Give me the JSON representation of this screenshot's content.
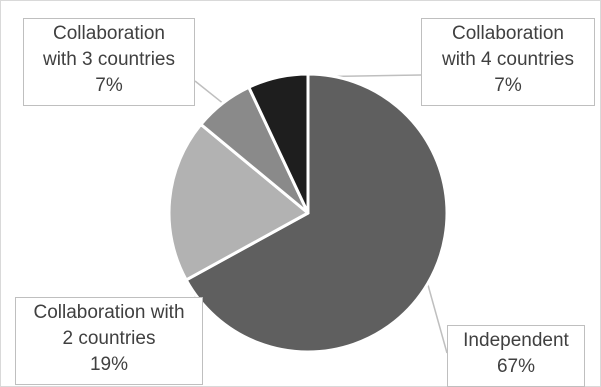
{
  "chart_data": {
    "type": "pie",
    "title": "",
    "start_angle_deg": 0,
    "direction": "clockwise",
    "slices": [
      {
        "label_lines": [
          "Independent"
        ],
        "value_label": "67%",
        "value": 67,
        "color": "#5f5f5f"
      },
      {
        "label_lines": [
          "Collaboration with",
          "2 countries"
        ],
        "value_label": "19%",
        "value": 19,
        "color": "#b2b2b2"
      },
      {
        "label_lines": [
          "Collaboration",
          "with 3 countries"
        ],
        "value_label": "7%",
        "value": 7,
        "color": "#8a8a8a"
      },
      {
        "label_lines": [
          "Collaboration",
          "with 4 countries"
        ],
        "value_label": "7%",
        "value": 7,
        "color": "#1e1e1e"
      }
    ],
    "slice_border_color": "#ffffff",
    "leader_line_color": "#bfbfbf"
  }
}
